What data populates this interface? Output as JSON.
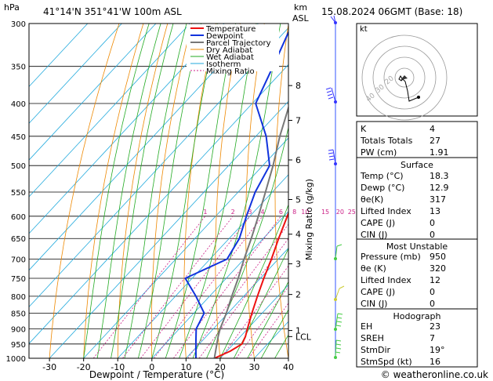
{
  "header": {
    "p_unit": "hPa",
    "location": "41°14'N  351°41'W  100m  ASL",
    "km_unit": "km",
    "asl": "ASL",
    "datetime": "15.08.2024  06GMT  (Base: 18)"
  },
  "chart_data": {
    "type": "line",
    "xlabel": "Dewpoint / Temperature (°C)",
    "y2label": "Mixing Ratio (g/kg)",
    "x_ticks": [
      -30,
      -20,
      -10,
      0,
      10,
      20,
      30,
      40
    ],
    "xlim": [
      -36,
      40
    ],
    "p_levels": [
      300,
      350,
      400,
      450,
      500,
      550,
      600,
      650,
      700,
      750,
      800,
      850,
      900,
      950,
      1000
    ],
    "ylim_hpa": [
      1000,
      300
    ],
    "km_ticks": [
      {
        "label": "8",
        "p": 375
      },
      {
        "label": "7",
        "p": 425
      },
      {
        "label": "6",
        "p": 490
      },
      {
        "label": "5",
        "p": 565
      },
      {
        "label": "4",
        "p": 640
      },
      {
        "label": "3",
        "p": 712
      },
      {
        "label": "2",
        "p": 795
      },
      {
        "label": "1",
        "p": 905
      },
      {
        "label": "LCL",
        "p": 925
      }
    ],
    "mixing_ratio_labels": [
      "1",
      "2",
      "3",
      "4",
      "6",
      "8",
      "10",
      "15",
      "20",
      "25"
    ],
    "mixing_ratio_values": [
      1,
      2,
      3,
      4,
      6,
      8,
      10,
      15,
      20,
      25
    ],
    "mixing_ratio_label_p": 600,
    "legend": [
      "Temperature",
      "Dewpoint",
      "Parcel Trajectory",
      "Dry Adiabat",
      "Wet Adiabat",
      "Isotherm",
      "Mixing Ratio"
    ],
    "series": [
      {
        "name": "Temperature",
        "color": "#ee1111",
        "points": [
          [
            1000,
            18.3
          ],
          [
            975,
            21
          ],
          [
            950,
            22.5
          ],
          [
            925,
            21.5
          ],
          [
            900,
            20
          ],
          [
            850,
            17
          ],
          [
            800,
            14
          ],
          [
            750,
            11
          ],
          [
            700,
            8
          ],
          [
            650,
            4.5
          ],
          [
            600,
            1
          ],
          [
            550,
            -3
          ],
          [
            500,
            -7
          ],
          [
            450,
            -12.5
          ],
          [
            400,
            -19
          ],
          [
            350,
            -27
          ],
          [
            300,
            -35
          ]
        ]
      },
      {
        "name": "Dewpoint",
        "color": "#1133dd",
        "points": [
          [
            1000,
            12.9
          ],
          [
            950,
            9
          ],
          [
            900,
            5
          ],
          [
            850,
            3
          ],
          [
            800,
            -4
          ],
          [
            750,
            -12
          ],
          [
            700,
            -5
          ],
          [
            650,
            -7
          ],
          [
            600,
            -11
          ],
          [
            550,
            -15
          ],
          [
            500,
            -18
          ],
          [
            450,
            -27
          ],
          [
            400,
            -39
          ],
          [
            350,
            -44
          ],
          [
            300,
            -50
          ]
        ]
      },
      {
        "name": "Parcel Trajectory",
        "color": "#777777",
        "points": [
          [
            1000,
            18.3
          ],
          [
            925,
            13.5
          ],
          [
            900,
            12
          ],
          [
            850,
            9.5
          ],
          [
            800,
            6.5
          ],
          [
            750,
            3.5
          ],
          [
            700,
            0
          ],
          [
            650,
            -3.5
          ],
          [
            600,
            -7.5
          ],
          [
            550,
            -12
          ],
          [
            500,
            -17
          ],
          [
            450,
            -23
          ],
          [
            400,
            -29
          ],
          [
            350,
            -36
          ],
          [
            300,
            -44
          ]
        ]
      }
    ]
  },
  "wind_colors": [
    "#3333ff",
    "#3333ff",
    "#3333ff",
    "#44cc44",
    "#cccc33",
    "#44cc44",
    "#44cc44"
  ],
  "hodograph": {
    "label": "kt",
    "ring_labels": [
      "40",
      "30",
      "20"
    ]
  },
  "indices": {
    "top": [
      {
        "label": "K",
        "value": "4"
      },
      {
        "label": "Totals Totals",
        "value": "27"
      },
      {
        "label": "PW (cm)",
        "value": "1.91"
      }
    ],
    "surface": {
      "title": "Surface",
      "rows": [
        {
          "label": "Temp (°C)",
          "value": "18.3"
        },
        {
          "label": "Dewp (°C)",
          "value": "12.9"
        },
        {
          "label": "θe(K)",
          "value": "317"
        },
        {
          "label": "Lifted Index",
          "value": "13"
        },
        {
          "label": "CAPE (J)",
          "value": "0"
        },
        {
          "label": "CIN (J)",
          "value": "0"
        }
      ]
    },
    "most_unstable": {
      "title": "Most Unstable",
      "rows": [
        {
          "label": "Pressure (mb)",
          "value": "950"
        },
        {
          "label": "θe (K)",
          "value": "320"
        },
        {
          "label": "Lifted Index",
          "value": "12"
        },
        {
          "label": "CAPE (J)",
          "value": "0"
        },
        {
          "label": "CIN (J)",
          "value": "0"
        }
      ]
    },
    "hodograph": {
      "title": "Hodograph",
      "rows": [
        {
          "label": "EH",
          "value": "23"
        },
        {
          "label": "SREH",
          "value": "7"
        },
        {
          "label": "StmDir",
          "value": "19°"
        },
        {
          "label": "StmSpd (kt)",
          "value": "16"
        }
      ]
    }
  },
  "footer": {
    "copyright": "© weatheronline.co.uk"
  }
}
